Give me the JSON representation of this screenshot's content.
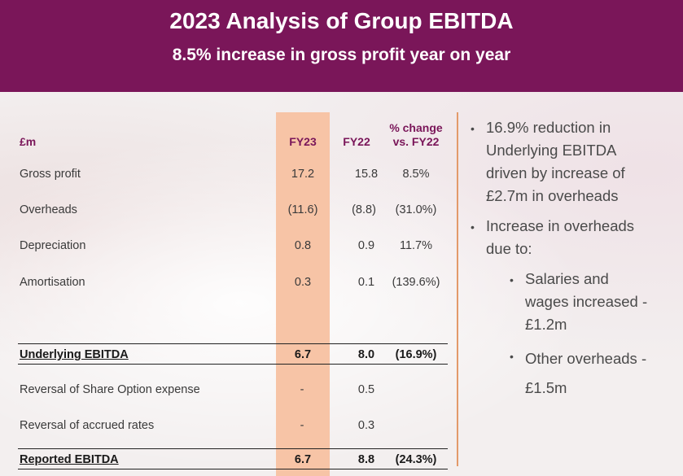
{
  "header": {
    "title": "2023 Analysis of Group EBITDA",
    "subtitle": "8.5% increase in gross profit year on year"
  },
  "table": {
    "columns": {
      "label": "£m",
      "fy23": "FY23",
      "fy22": "FY22",
      "change_line1": "% change",
      "change_line2": "vs. FY22"
    },
    "rows": [
      {
        "label": "Gross profit",
        "fy23": "17.2",
        "fy22": "15.8",
        "change": "8.5%"
      },
      {
        "label": "Overheads",
        "fy23": "(11.6)",
        "fy22": "(8.8)",
        "change": "(31.0%)"
      },
      {
        "label": "Depreciation",
        "fy23": "0.8",
        "fy22": "0.9",
        "change": "11.7%"
      },
      {
        "label": "Amortisation",
        "fy23": "0.3",
        "fy22": "0.1",
        "change": "(139.6%)"
      },
      {
        "label": "Underlying EBITDA",
        "fy23": "6.7",
        "fy22": "8.0",
        "change": "(16.9%)"
      },
      {
        "label": "Reversal of Share Option expense",
        "fy23": "-",
        "fy22": "0.5",
        "change": ""
      },
      {
        "label": "Reversal of accrued rates",
        "fy23": "-",
        "fy22": "0.3",
        "change": ""
      },
      {
        "label": "Reported EBITDA",
        "fy23": "6.7",
        "fy22": "8.8",
        "change": "(24.3%)"
      }
    ]
  },
  "bullets": {
    "b1": [
      "16.9% reduction in",
      "Underlying EBITDA",
      "driven by increase of",
      "£2.7m in overheads"
    ],
    "b2": [
      "Increase in overheads",
      "due to:"
    ],
    "sub1": [
      "Salaries and",
      "wages increased -",
      "£1.2m"
    ],
    "sub2": [
      "Other overheads -",
      "£1.5m"
    ],
    "marker": "•"
  }
}
